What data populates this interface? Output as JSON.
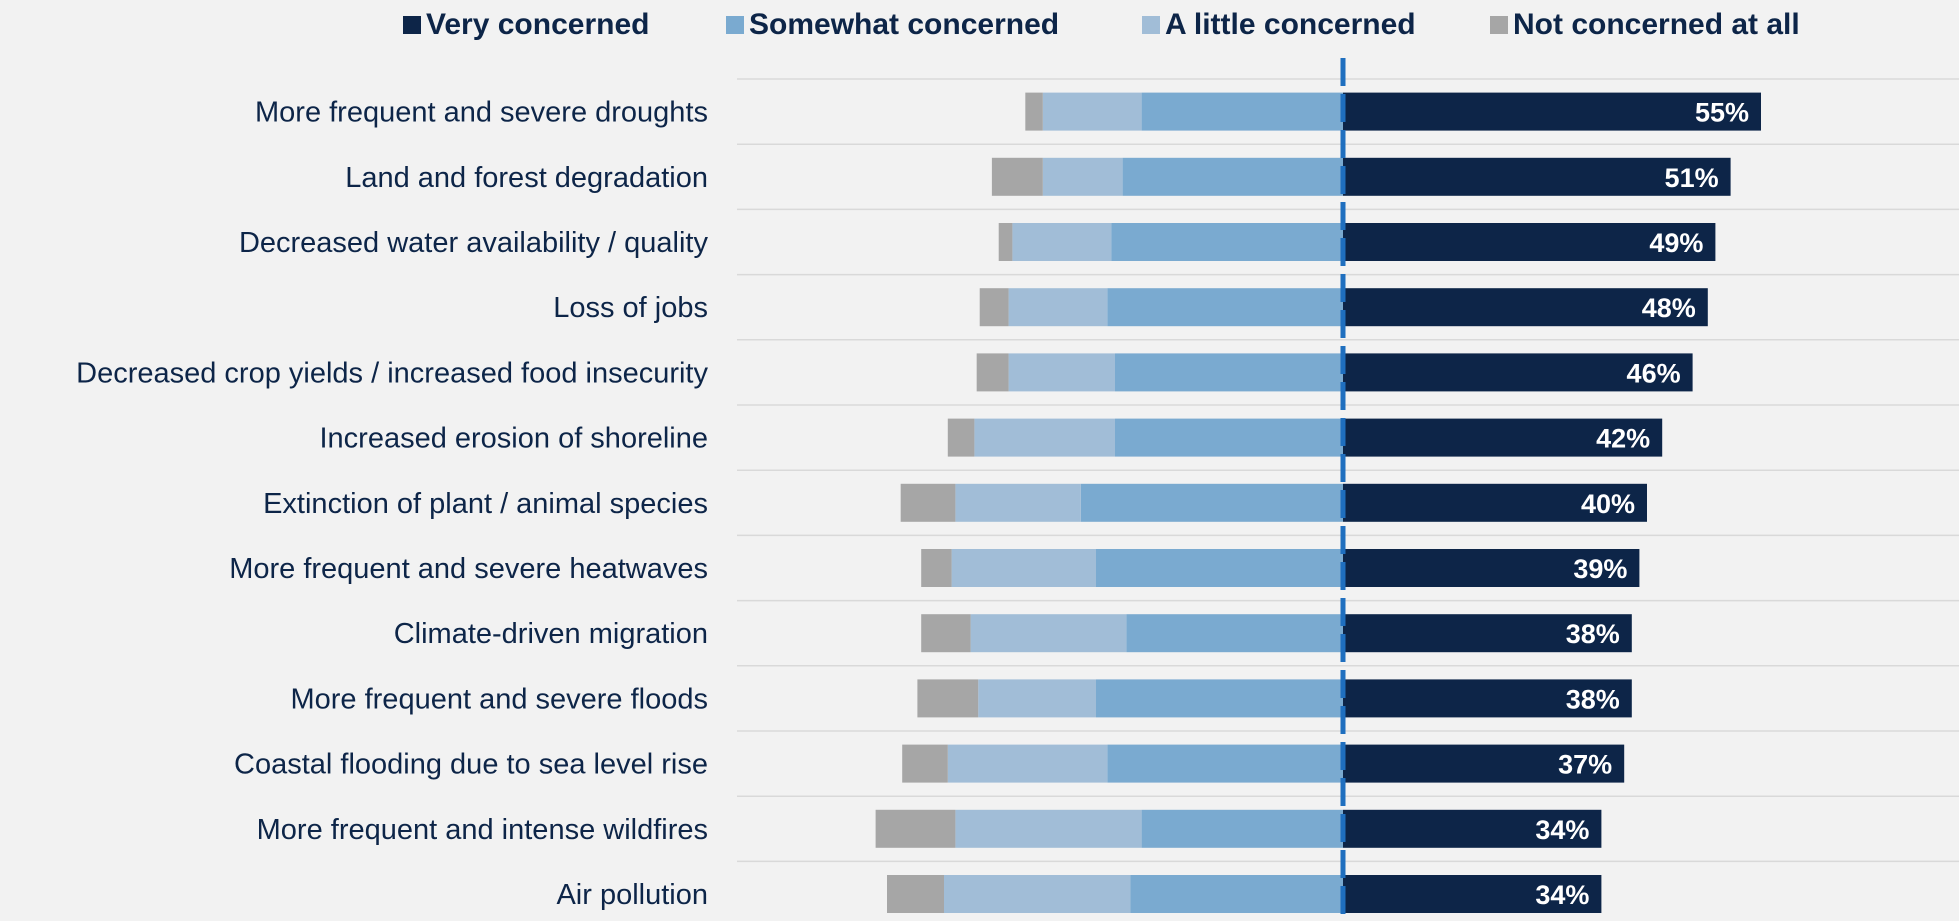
{
  "chart_data": {
    "type": "bar",
    "orientation": "horizontal",
    "layout": "diverging-stacked",
    "title": "",
    "xlabel": "",
    "ylabel": "",
    "legend_position": "top",
    "grid": true,
    "categories": [
      "More frequent and severe droughts",
      "Land and forest degradation",
      "Decreased water availability / quality",
      "Loss of jobs",
      "Decreased crop yields / increased food insecurity",
      "Increased erosion of shoreline",
      "Extinction of plant / animal species",
      "More frequent and severe heatwaves",
      "Climate-driven migration",
      "More frequent and severe floods",
      "Coastal flooding due to sea level rise",
      "More frequent and intense wildfires",
      "Air pollution"
    ],
    "series": [
      {
        "name": "Very concerned",
        "color": "#0d2548",
        "side": "right",
        "values": [
          55,
          51,
          49,
          48,
          46,
          42,
          40,
          39,
          38,
          38,
          37,
          34,
          34
        ],
        "labels": [
          "55%",
          "51%",
          "49%",
          "48%",
          "46%",
          "42%",
          "40%",
          "39%",
          "38%",
          "38%",
          "37%",
          "34%",
          "34%"
        ]
      },
      {
        "name": "Somewhat concerned",
        "color": "#7aaad0",
        "side": "left",
        "values": [
          26.5,
          29,
          30.5,
          31,
          30,
          30,
          34.5,
          32.5,
          28.5,
          32.5,
          31,
          26.5,
          28
        ]
      },
      {
        "name": "A little concerned",
        "color": "#a1bdd7",
        "side": "left",
        "values": [
          13,
          10.5,
          13,
          13,
          14,
          18.5,
          16.5,
          19,
          20.5,
          15.5,
          21,
          24.5,
          24.5
        ]
      },
      {
        "name": "Not concerned at all",
        "color": "#a6a6a6",
        "side": "left",
        "values": [
          2.3,
          6.7,
          1.8,
          3.8,
          4.2,
          3.5,
          7.2,
          4.0,
          6.5,
          8.0,
          6.0,
          10.5,
          7.5
        ]
      }
    ]
  }
}
